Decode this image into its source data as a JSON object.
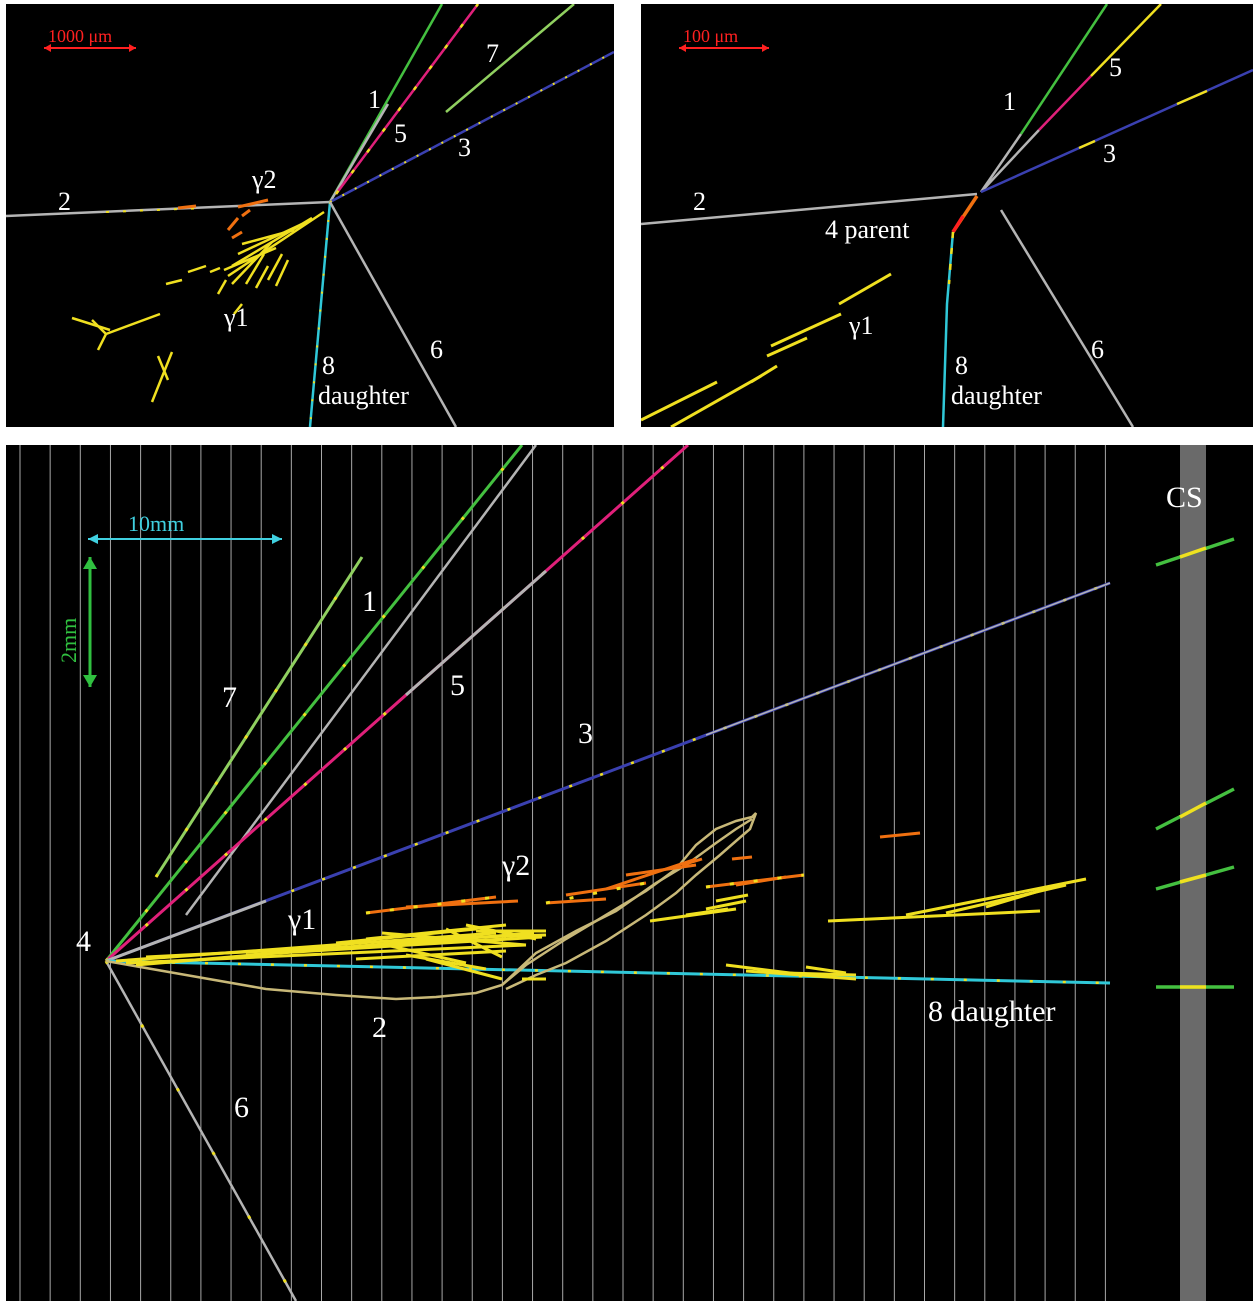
{
  "panels": {
    "top_left": {
      "scale_label": "1000 μm",
      "labels": {
        "t1": "1",
        "t2": "2",
        "t3": "3",
        "t5": "5",
        "t6": "6",
        "t7": "7",
        "g1": "γ1",
        "g2": "γ2",
        "t8": "8",
        "daughter": "daughter"
      }
    },
    "top_right": {
      "scale_label": "100 μm",
      "labels": {
        "t1": "1",
        "t2": "2",
        "t3": "3",
        "t5": "5",
        "t6": "6",
        "parent": "4 parent",
        "g1": "γ1",
        "t8": "8",
        "daughter": "daughter"
      }
    },
    "bottom": {
      "scale_x_label": "10mm",
      "scale_y_label": "2mm",
      "cs_label": "CS",
      "labels": {
        "t1": "1",
        "t2": "2",
        "t3": "3",
        "t4": "4",
        "t5": "5",
        "t6": "6",
        "t7": "7",
        "g1": "γ1",
        "g2": "γ2",
        "daughter": "8 daughter"
      }
    }
  },
  "colors": {
    "background": "#000000",
    "scale_small": "#ff2020",
    "scale_x": "#40d0e0",
    "scale_y": "#30c040",
    "track_green": "#44c040",
    "track_light_green": "#90d060",
    "track_magenta": "#e0207a",
    "track_blue": "#3a40b0",
    "track_grey": "#b4b4b4",
    "track_cyan": "#30c8d8",
    "shower_yellow": "#f0e020",
    "shower_orange": "#f07010",
    "gridline": "#a8a8a8",
    "cs_band": "#6a6a6a"
  }
}
